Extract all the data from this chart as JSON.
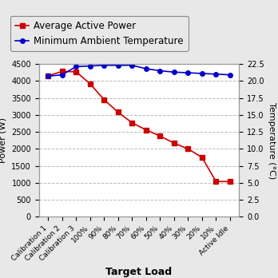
{
  "categories": [
    "Calibration 1",
    "Calibration 2",
    "Calibration 3",
    "100%",
    "90%",
    "80%",
    "70%",
    "60%",
    "50%",
    "40%",
    "30%",
    "20%",
    "10%",
    "Active Idle"
  ],
  "power_values": [
    4150,
    4280,
    4270,
    3920,
    3450,
    3080,
    2770,
    2560,
    2380,
    2170,
    2000,
    1750,
    1040,
    1040
  ],
  "temp_values": [
    20.7,
    20.9,
    22.1,
    22.2,
    22.3,
    22.3,
    22.3,
    21.8,
    21.5,
    21.3,
    21.2,
    21.1,
    21.0,
    20.9
  ],
  "power_color": "#cc0000",
  "temp_color": "#0000cc",
  "power_label": "Average Active Power",
  "temp_label": "Minimum Ambient Temperature",
  "xlabel": "Target Load",
  "ylabel_left": "Power (W)",
  "ylabel_right": "Temperature (°C)",
  "ylim_left": [
    0,
    4500
  ],
  "ylim_right": [
    0.0,
    22.5
  ],
  "yticks_left": [
    0,
    500,
    1000,
    1500,
    2000,
    2500,
    3000,
    3500,
    4000,
    4500
  ],
  "yticks_right": [
    0.0,
    2.5,
    5.0,
    7.5,
    10.0,
    12.5,
    15.0,
    17.5,
    20.0,
    22.5
  ],
  "grid_color": "#bbbbbb",
  "background_color": "#e8e8e8",
  "plot_bg_color": "#ffffff",
  "legend_fontsize": 8.5,
  "tick_fontsize": 7,
  "xlabel_fontsize": 9,
  "ylabel_fontsize": 8,
  "xtick_fontsize": 6.5
}
